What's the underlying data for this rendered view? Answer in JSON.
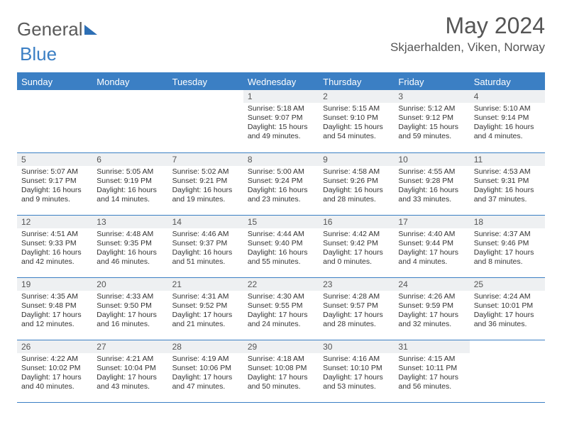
{
  "logo": {
    "text1": "General",
    "text2": "Blue"
  },
  "title": "May 2024",
  "location": "Skjaerhalden, Viken, Norway",
  "colors": {
    "accent": "#3b7fc4",
    "header_bg": "#3b7fc4",
    "daynum_bg": "#eef0f2",
    "text": "#333333",
    "title_text": "#555555",
    "background": "#ffffff"
  },
  "day_headers": [
    "Sunday",
    "Monday",
    "Tuesday",
    "Wednesday",
    "Thursday",
    "Friday",
    "Saturday"
  ],
  "weeks": [
    [
      {
        "n": "",
        "sr": "",
        "ss": "",
        "dl": ""
      },
      {
        "n": "",
        "sr": "",
        "ss": "",
        "dl": ""
      },
      {
        "n": "",
        "sr": "",
        "ss": "",
        "dl": ""
      },
      {
        "n": "1",
        "sr": "5:18 AM",
        "ss": "9:07 PM",
        "dl": "15 hours and 49 minutes."
      },
      {
        "n": "2",
        "sr": "5:15 AM",
        "ss": "9:10 PM",
        "dl": "15 hours and 54 minutes."
      },
      {
        "n": "3",
        "sr": "5:12 AM",
        "ss": "9:12 PM",
        "dl": "15 hours and 59 minutes."
      },
      {
        "n": "4",
        "sr": "5:10 AM",
        "ss": "9:14 PM",
        "dl": "16 hours and 4 minutes."
      }
    ],
    [
      {
        "n": "5",
        "sr": "5:07 AM",
        "ss": "9:17 PM",
        "dl": "16 hours and 9 minutes."
      },
      {
        "n": "6",
        "sr": "5:05 AM",
        "ss": "9:19 PM",
        "dl": "16 hours and 14 minutes."
      },
      {
        "n": "7",
        "sr": "5:02 AM",
        "ss": "9:21 PM",
        "dl": "16 hours and 19 minutes."
      },
      {
        "n": "8",
        "sr": "5:00 AM",
        "ss": "9:24 PM",
        "dl": "16 hours and 23 minutes."
      },
      {
        "n": "9",
        "sr": "4:58 AM",
        "ss": "9:26 PM",
        "dl": "16 hours and 28 minutes."
      },
      {
        "n": "10",
        "sr": "4:55 AM",
        "ss": "9:28 PM",
        "dl": "16 hours and 33 minutes."
      },
      {
        "n": "11",
        "sr": "4:53 AM",
        "ss": "9:31 PM",
        "dl": "16 hours and 37 minutes."
      }
    ],
    [
      {
        "n": "12",
        "sr": "4:51 AM",
        "ss": "9:33 PM",
        "dl": "16 hours and 42 minutes."
      },
      {
        "n": "13",
        "sr": "4:48 AM",
        "ss": "9:35 PM",
        "dl": "16 hours and 46 minutes."
      },
      {
        "n": "14",
        "sr": "4:46 AM",
        "ss": "9:37 PM",
        "dl": "16 hours and 51 minutes."
      },
      {
        "n": "15",
        "sr": "4:44 AM",
        "ss": "9:40 PM",
        "dl": "16 hours and 55 minutes."
      },
      {
        "n": "16",
        "sr": "4:42 AM",
        "ss": "9:42 PM",
        "dl": "17 hours and 0 minutes."
      },
      {
        "n": "17",
        "sr": "4:40 AM",
        "ss": "9:44 PM",
        "dl": "17 hours and 4 minutes."
      },
      {
        "n": "18",
        "sr": "4:37 AM",
        "ss": "9:46 PM",
        "dl": "17 hours and 8 minutes."
      }
    ],
    [
      {
        "n": "19",
        "sr": "4:35 AM",
        "ss": "9:48 PM",
        "dl": "17 hours and 12 minutes."
      },
      {
        "n": "20",
        "sr": "4:33 AM",
        "ss": "9:50 PM",
        "dl": "17 hours and 16 minutes."
      },
      {
        "n": "21",
        "sr": "4:31 AM",
        "ss": "9:52 PM",
        "dl": "17 hours and 21 minutes."
      },
      {
        "n": "22",
        "sr": "4:30 AM",
        "ss": "9:55 PM",
        "dl": "17 hours and 24 minutes."
      },
      {
        "n": "23",
        "sr": "4:28 AM",
        "ss": "9:57 PM",
        "dl": "17 hours and 28 minutes."
      },
      {
        "n": "24",
        "sr": "4:26 AM",
        "ss": "9:59 PM",
        "dl": "17 hours and 32 minutes."
      },
      {
        "n": "25",
        "sr": "4:24 AM",
        "ss": "10:01 PM",
        "dl": "17 hours and 36 minutes."
      }
    ],
    [
      {
        "n": "26",
        "sr": "4:22 AM",
        "ss": "10:02 PM",
        "dl": "17 hours and 40 minutes."
      },
      {
        "n": "27",
        "sr": "4:21 AM",
        "ss": "10:04 PM",
        "dl": "17 hours and 43 minutes."
      },
      {
        "n": "28",
        "sr": "4:19 AM",
        "ss": "10:06 PM",
        "dl": "17 hours and 47 minutes."
      },
      {
        "n": "29",
        "sr": "4:18 AM",
        "ss": "10:08 PM",
        "dl": "17 hours and 50 minutes."
      },
      {
        "n": "30",
        "sr": "4:16 AM",
        "ss": "10:10 PM",
        "dl": "17 hours and 53 minutes."
      },
      {
        "n": "31",
        "sr": "4:15 AM",
        "ss": "10:11 PM",
        "dl": "17 hours and 56 minutes."
      },
      {
        "n": "",
        "sr": "",
        "ss": "",
        "dl": ""
      }
    ]
  ],
  "labels": {
    "sunrise": "Sunrise: ",
    "sunset": "Sunset: ",
    "daylight": "Daylight: "
  }
}
